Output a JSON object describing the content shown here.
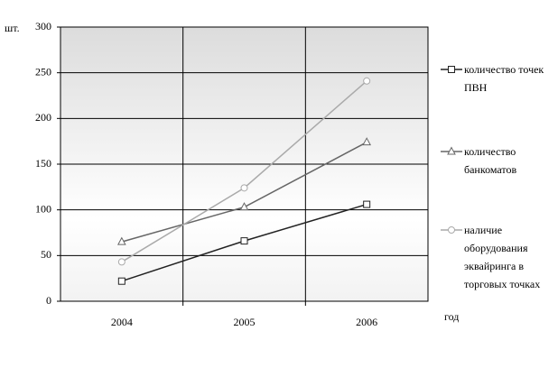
{
  "chart_data": {
    "type": "line",
    "y_label": "шт.",
    "x_label": "год",
    "categories": [
      "2004",
      "2005",
      "2006"
    ],
    "series": [
      {
        "name": "количество точек ПВН",
        "color": "#222222",
        "marker": "square",
        "values": [
          22,
          66,
          106
        ]
      },
      {
        "name": "количество банкоматов",
        "color": "#666666",
        "marker": "triangle",
        "values": [
          65,
          103,
          174
        ]
      },
      {
        "name": "наличие оборудования эквайринга в торговых точках",
        "color": "#aaaaaa",
        "marker": "circle",
        "values": [
          43,
          124,
          241
        ]
      }
    ],
    "ylim": [
      0,
      300
    ],
    "yticks": [
      0,
      50,
      100,
      150,
      200,
      250,
      300
    ],
    "grid": true,
    "legend": "right"
  }
}
